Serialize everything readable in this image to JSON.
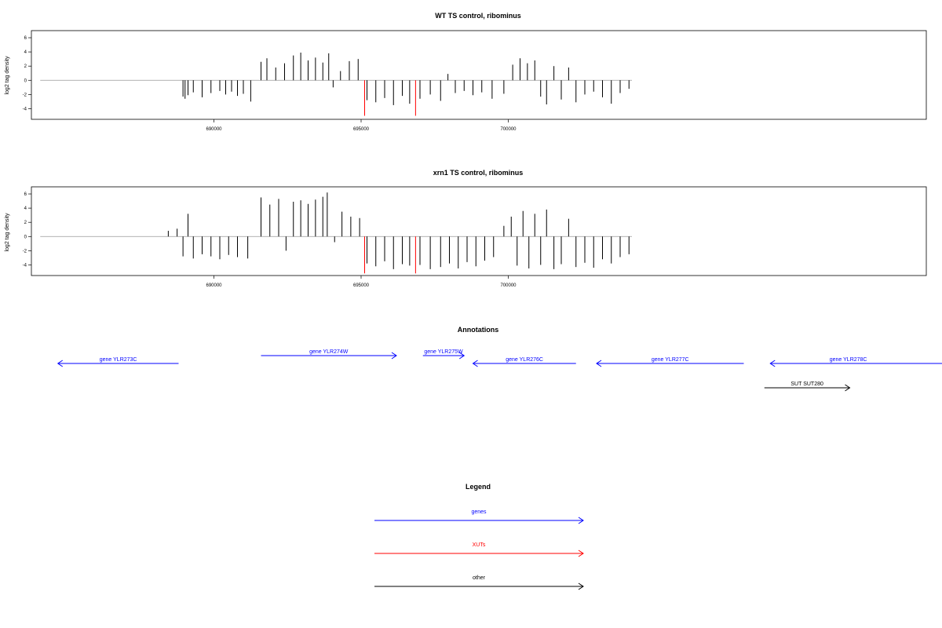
{
  "chart_data": [
    {
      "type": "bar",
      "title": "WT TS control, ribominus",
      "xlabel": "",
      "ylabel": "log2 tag density",
      "xlim": [
        683800,
        714200
      ],
      "ylim": [
        -5.5,
        7
      ],
      "x_ticks": [
        690000,
        695000,
        700000
      ],
      "x_tick_labels": [
        "690000",
        "695000",
        "700000"
      ],
      "y_ticks": [
        -4,
        -2,
        0,
        2,
        4,
        6
      ],
      "y_tick_labels": [
        "-4",
        "-2",
        "0",
        "2",
        "4",
        "6"
      ],
      "baseline_range": [
        684100,
        704200
      ],
      "series": [
        {
          "values": [
            {
              "x": 688950,
              "y": -2.3
            },
            {
              "x": 689020,
              "y": -2.6
            },
            {
              "x": 689120,
              "y": -2.1
            },
            {
              "x": 689300,
              "y": -1.7
            },
            {
              "x": 689600,
              "y": -2.4
            },
            {
              "x": 689900,
              "y": -1.8
            },
            {
              "x": 690200,
              "y": -1.5
            },
            {
              "x": 690400,
              "y": -2.0
            },
            {
              "x": 690600,
              "y": -1.6
            },
            {
              "x": 690800,
              "y": -2.2
            },
            {
              "x": 691000,
              "y": -1.9
            },
            {
              "x": 691250,
              "y": -3.0
            },
            {
              "x": 691600,
              "y": 2.6
            },
            {
              "x": 691800,
              "y": 3.1
            },
            {
              "x": 692100,
              "y": 1.8
            },
            {
              "x": 692400,
              "y": 2.4
            },
            {
              "x": 692700,
              "y": 3.5
            },
            {
              "x": 692950,
              "y": 3.9
            },
            {
              "x": 693200,
              "y": 2.8
            },
            {
              "x": 693450,
              "y": 3.2
            },
            {
              "x": 693700,
              "y": 2.5
            },
            {
              "x": 693900,
              "y": 3.8
            },
            {
              "x": 694050,
              "y": -1.0
            },
            {
              "x": 694300,
              "y": 1.3
            },
            {
              "x": 694600,
              "y": 2.7
            },
            {
              "x": 694900,
              "y": 3.0
            },
            {
              "x": 695200,
              "y": -2.8
            },
            {
              "x": 695500,
              "y": -3.1
            },
            {
              "x": 695800,
              "y": -2.5
            },
            {
              "x": 696100,
              "y": -3.5
            },
            {
              "x": 696400,
              "y": -2.2
            },
            {
              "x": 696650,
              "y": -3.3
            },
            {
              "x": 697000,
              "y": -2.6
            },
            {
              "x": 697350,
              "y": -2.0
            },
            {
              "x": 697700,
              "y": -2.9
            },
            {
              "x": 697950,
              "y": 0.9
            },
            {
              "x": 698200,
              "y": -1.8
            },
            {
              "x": 698500,
              "y": -1.5
            },
            {
              "x": 698800,
              "y": -2.1
            },
            {
              "x": 699100,
              "y": -1.7
            },
            {
              "x": 699450,
              "y": -2.6
            },
            {
              "x": 699850,
              "y": -1.9
            },
            {
              "x": 700150,
              "y": 2.2
            },
            {
              "x": 700400,
              "y": 3.1
            },
            {
              "x": 700650,
              "y": 2.4
            },
            {
              "x": 700900,
              "y": 2.8
            },
            {
              "x": 701100,
              "y": -2.3
            },
            {
              "x": 701300,
              "y": -3.4
            },
            {
              "x": 701550,
              "y": 2.0
            },
            {
              "x": 701800,
              "y": -2.7
            },
            {
              "x": 702050,
              "y": 1.8
            },
            {
              "x": 702300,
              "y": -3.1
            },
            {
              "x": 702600,
              "y": -2.0
            },
            {
              "x": 702900,
              "y": -1.6
            },
            {
              "x": 703200,
              "y": -2.4
            },
            {
              "x": 703500,
              "y": -3.3
            },
            {
              "x": 703800,
              "y": -1.8
            },
            {
              "x": 704100,
              "y": -1.2
            }
          ]
        },
        {
          "name": "XUTs",
          "values": [
            {
              "x": 695120,
              "y": -5.0
            },
            {
              "x": 696850,
              "y": -5.0
            }
          ]
        }
      ]
    },
    {
      "type": "bar",
      "title": "xrn1 TS control, ribominus",
      "xlabel": "",
      "ylabel": "log2 tag density",
      "xlim": [
        683800,
        714200
      ],
      "ylim": [
        -5.5,
        7
      ],
      "x_ticks": [
        690000,
        695000,
        700000
      ],
      "x_tick_labels": [
        "690000",
        "695000",
        "700000"
      ],
      "y_ticks": [
        -4,
        -2,
        0,
        2,
        4,
        6
      ],
      "y_tick_labels": [
        "-4",
        "-2",
        "0",
        "2",
        "4",
        "6"
      ],
      "baseline_range": [
        684100,
        704200
      ],
      "series": [
        {
          "values": [
            {
              "x": 688450,
              "y": 0.8
            },
            {
              "x": 688750,
              "y": 1.1
            },
            {
              "x": 688950,
              "y": -2.8
            },
            {
              "x": 689120,
              "y": 3.2
            },
            {
              "x": 689300,
              "y": -3.1
            },
            {
              "x": 689600,
              "y": -2.5
            },
            {
              "x": 689900,
              "y": -2.8
            },
            {
              "x": 690200,
              "y": -3.2
            },
            {
              "x": 690500,
              "y": -2.6
            },
            {
              "x": 690800,
              "y": -2.9
            },
            {
              "x": 691150,
              "y": -3.1
            },
            {
              "x": 691600,
              "y": 5.5
            },
            {
              "x": 691900,
              "y": 4.5
            },
            {
              "x": 692200,
              "y": 5.3
            },
            {
              "x": 692450,
              "y": -2.0
            },
            {
              "x": 692700,
              "y": 4.9
            },
            {
              "x": 692950,
              "y": 5.1
            },
            {
              "x": 693200,
              "y": 4.6
            },
            {
              "x": 693450,
              "y": 5.2
            },
            {
              "x": 693700,
              "y": 5.6
            },
            {
              "x": 693850,
              "y": 6.2
            },
            {
              "x": 694100,
              "y": -0.8
            },
            {
              "x": 694350,
              "y": 3.5
            },
            {
              "x": 694650,
              "y": 2.8
            },
            {
              "x": 694950,
              "y": 2.6
            },
            {
              "x": 695200,
              "y": -3.8
            },
            {
              "x": 695500,
              "y": -4.2
            },
            {
              "x": 695800,
              "y": -3.5
            },
            {
              "x": 696100,
              "y": -4.6
            },
            {
              "x": 696400,
              "y": -3.9
            },
            {
              "x": 696650,
              "y": -4.1
            },
            {
              "x": 697000,
              "y": -4.0
            },
            {
              "x": 697350,
              "y": -4.6
            },
            {
              "x": 697700,
              "y": -4.3
            },
            {
              "x": 698000,
              "y": -3.8
            },
            {
              "x": 698300,
              "y": -4.5
            },
            {
              "x": 698600,
              "y": -3.6
            },
            {
              "x": 698900,
              "y": -4.2
            },
            {
              "x": 699200,
              "y": -3.4
            },
            {
              "x": 699500,
              "y": -2.9
            },
            {
              "x": 699850,
              "y": 1.5
            },
            {
              "x": 700100,
              "y": 2.8
            },
            {
              "x": 700300,
              "y": -4.1
            },
            {
              "x": 700500,
              "y": 3.6
            },
            {
              "x": 700700,
              "y": -4.5
            },
            {
              "x": 700900,
              "y": 3.2
            },
            {
              "x": 701100,
              "y": -4.0
            },
            {
              "x": 701300,
              "y": 3.8
            },
            {
              "x": 701550,
              "y": -4.6
            },
            {
              "x": 701800,
              "y": -3.9
            },
            {
              "x": 702050,
              "y": 2.5
            },
            {
              "x": 702300,
              "y": -4.3
            },
            {
              "x": 702600,
              "y": -3.7
            },
            {
              "x": 702900,
              "y": -4.4
            },
            {
              "x": 703200,
              "y": -3.2
            },
            {
              "x": 703500,
              "y": -3.8
            },
            {
              "x": 703800,
              "y": -2.9
            },
            {
              "x": 704100,
              "y": -2.5
            }
          ]
        },
        {
          "name": "XUTs",
          "values": [
            {
              "x": 695120,
              "y": -5.2
            },
            {
              "x": 696850,
              "y": -5.2
            }
          ]
        }
      ]
    }
  ],
  "annotations": {
    "title": "Annotations",
    "features": [
      {
        "label": "gene YLR273C",
        "start": 684700,
        "end": 688800,
        "strand": "-",
        "color": "#0000ff",
        "row": 1
      },
      {
        "label": "gene YLR274W",
        "start": 691600,
        "end": 696200,
        "strand": "+",
        "color": "#0000ff",
        "row": 0
      },
      {
        "label": "gene YLR275W",
        "start": 697100,
        "end": 698500,
        "strand": "+",
        "color": "#0000ff",
        "row": 0
      },
      {
        "label": "gene YLR276C",
        "start": 698800,
        "end": 702300,
        "strand": "-",
        "color": "#0000ff",
        "row": 1
      },
      {
        "label": "gene YLR277C",
        "start": 703000,
        "end": 708000,
        "strand": "-",
        "color": "#0000ff",
        "row": 1
      },
      {
        "label": "gene YLR278C",
        "start": 708900,
        "end": 718000,
        "strand": "-",
        "color": "#0000ff",
        "row": 1
      },
      {
        "label": "SUT SUT280",
        "start": 708700,
        "end": 711600,
        "strand": "+",
        "color": "#000000",
        "row": 2
      }
    ]
  },
  "legend": {
    "title": "Legend",
    "items": [
      {
        "label": "genes",
        "color": "#0000ff"
      },
      {
        "label": "XUTs",
        "color": "#ff0000"
      },
      {
        "label": "other",
        "color": "#000000"
      }
    ]
  }
}
